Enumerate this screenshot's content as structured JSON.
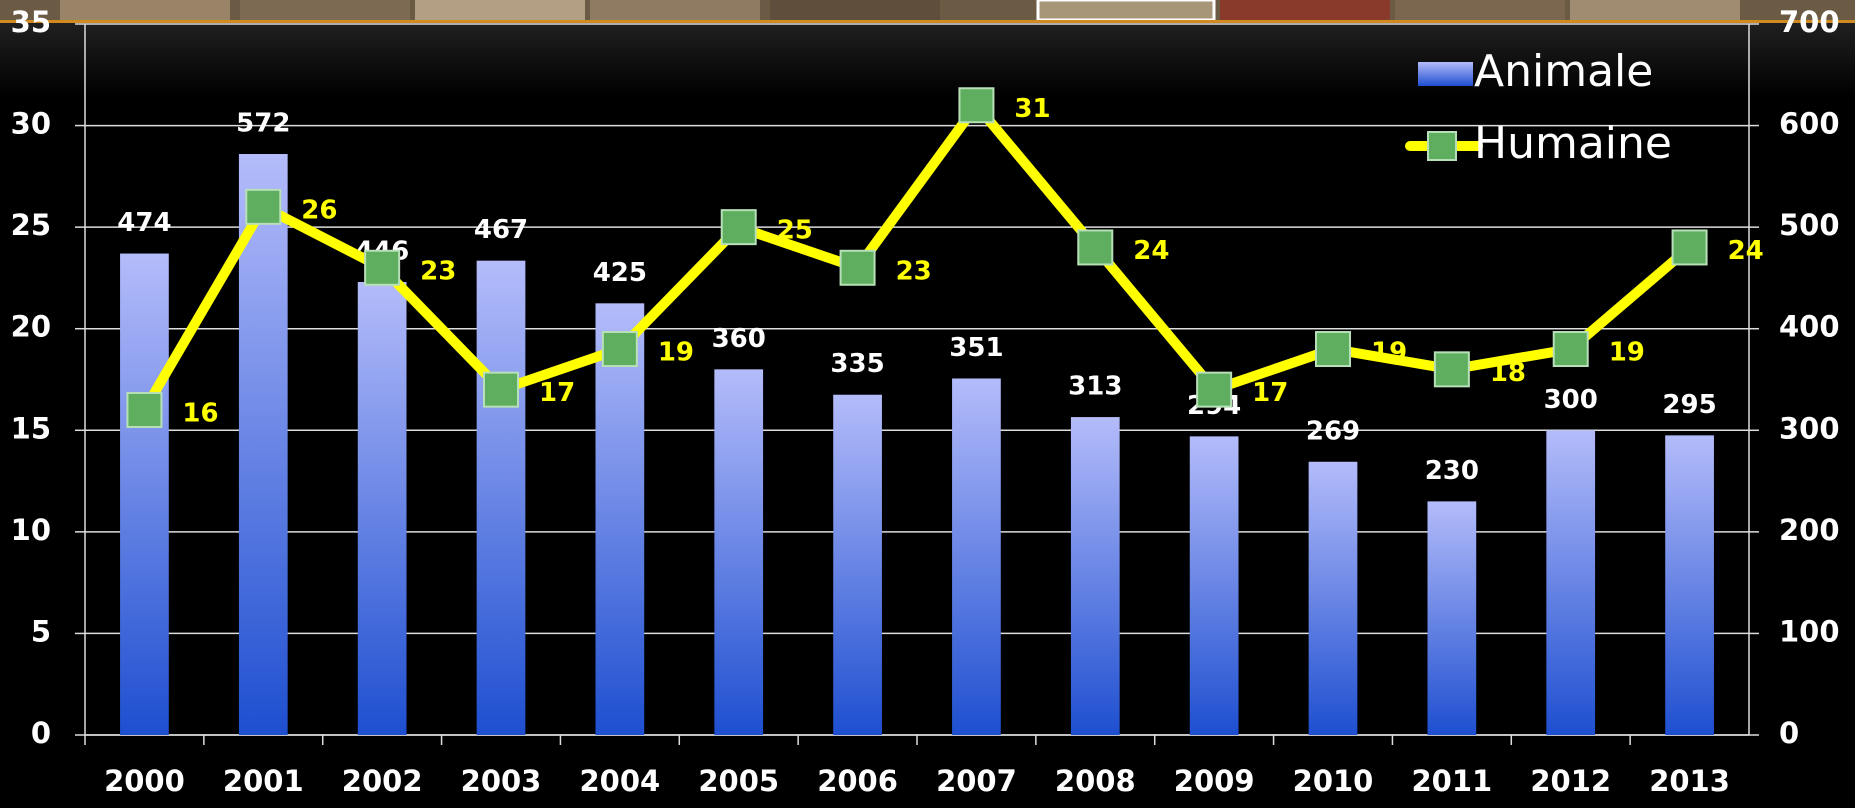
{
  "chart_data": {
    "type": "bar-line",
    "categories": [
      "2000",
      "2001",
      "2002",
      "2003",
      "2004",
      "2005",
      "2006",
      "2007",
      "2008",
      "2009",
      "2010",
      "2011",
      "2012",
      "2013"
    ],
    "series": [
      {
        "name": "Animale",
        "type": "bar",
        "axis": "y2",
        "color": "#1e4fd0",
        "values": [
          474,
          572,
          446,
          467,
          425,
          360,
          335,
          351,
          313,
          294,
          269,
          230,
          300,
          295
        ]
      },
      {
        "name": "Humaine",
        "type": "line",
        "axis": "y",
        "color": "#ffff00",
        "marker_color": "#5fae5f",
        "values": [
          16,
          26,
          23,
          17,
          19,
          25,
          23,
          31,
          24,
          17,
          19,
          18,
          19,
          24
        ]
      }
    ],
    "ylim": [
      0,
      35
    ],
    "yticks": [
      0,
      5,
      10,
      15,
      20,
      25,
      30,
      35
    ],
    "y2lim": [
      0,
      700
    ],
    "y2ticks": [
      0,
      100,
      200,
      300,
      400,
      500,
      600,
      700
    ],
    "grid": true,
    "legend": "upper right"
  }
}
